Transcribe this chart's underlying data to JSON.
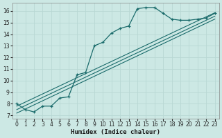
{
  "title": "",
  "xlabel": "Humidex (Indice chaleur)",
  "ylabel": "",
  "bg_color": "#cce8e4",
  "grid_color": "#b8d8d4",
  "line_color": "#1a6b6b",
  "xlim": [
    -0.5,
    23.5
  ],
  "ylim": [
    6.7,
    16.7
  ],
  "xticks": [
    0,
    1,
    2,
    3,
    4,
    5,
    6,
    7,
    8,
    9,
    10,
    11,
    12,
    13,
    14,
    15,
    16,
    17,
    18,
    19,
    20,
    21,
    22,
    23
  ],
  "yticks": [
    7,
    8,
    9,
    10,
    11,
    12,
    13,
    14,
    15,
    16
  ],
  "series1_x": [
    0,
    1,
    2,
    3,
    4,
    5,
    6,
    7,
    8,
    9,
    10,
    11,
    12,
    13,
    14,
    15,
    16,
    17,
    18,
    19,
    20,
    21,
    22,
    23
  ],
  "series1_y": [
    8.0,
    7.5,
    7.3,
    7.8,
    7.8,
    8.5,
    8.6,
    10.5,
    10.7,
    13.0,
    13.3,
    14.1,
    14.5,
    14.7,
    16.2,
    16.3,
    16.3,
    15.8,
    15.3,
    15.2,
    15.2,
    15.3,
    15.4,
    15.8
  ],
  "series2_x": [
    0,
    23
  ],
  "series2_y": [
    7.8,
    15.85
  ],
  "series3_x": [
    0,
    23
  ],
  "series3_y": [
    7.5,
    15.55
  ],
  "series4_x": [
    0,
    23
  ],
  "series4_y": [
    7.2,
    15.3
  ]
}
